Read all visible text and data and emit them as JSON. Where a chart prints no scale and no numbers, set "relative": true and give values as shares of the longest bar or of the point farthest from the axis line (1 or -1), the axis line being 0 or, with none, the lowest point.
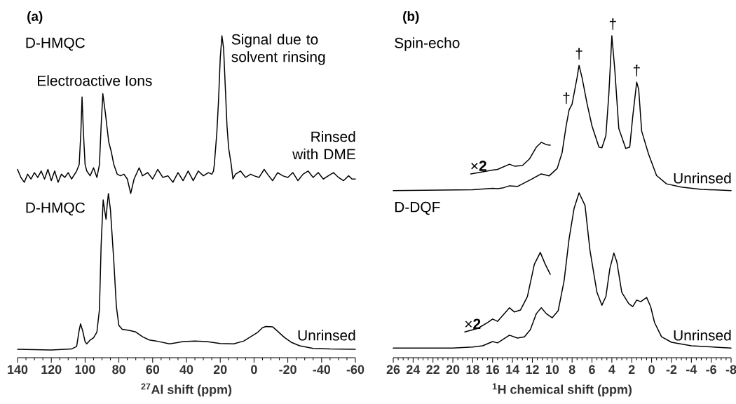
{
  "chart_data": [
    {
      "type": "line",
      "title": "(a)",
      "xlabel": "$^{27}$Al shift (ppm)",
      "relative": true,
      "xlim": [
        140,
        -60
      ],
      "xticks": [
        140,
        120,
        100,
        80,
        60,
        40,
        20,
        0,
        -20,
        -40,
        -60,
        {
          "value": 135,
          "label": null
        },
        {
          "value": 130,
          "label": null
        },
        {
          "value": 125,
          "label": null
        },
        {
          "value": 115,
          "label": null
        },
        {
          "value": 110,
          "label": null
        },
        {
          "value": 105,
          "label": null
        },
        {
          "value": 95,
          "label": null
        },
        {
          "value": 90,
          "label": null
        },
        {
          "value": 85,
          "label": null
        },
        {
          "value": 75,
          "label": null
        },
        {
          "value": 70,
          "label": null
        },
        {
          "value": 65,
          "label": null
        },
        {
          "value": 55,
          "label": null
        },
        {
          "value": 50,
          "label": null
        },
        {
          "value": 45,
          "label": null
        },
        {
          "value": 35,
          "label": null
        },
        {
          "value": 30,
          "label": null
        },
        {
          "value": 25,
          "label": null
        },
        {
          "value": 15,
          "label": null
        },
        {
          "value": 10,
          "label": null
        },
        {
          "value": 5,
          "label": null
        },
        {
          "value": -5,
          "label": null
        },
        {
          "value": -10,
          "label": null
        },
        {
          "value": -15,
          "label": null
        },
        {
          "value": -25,
          "label": null
        },
        {
          "value": -30,
          "label": null
        },
        {
          "value": -35,
          "label": null
        },
        {
          "value": -45,
          "label": null
        },
        {
          "value": -50,
          "label": null
        },
        {
          "value": -55,
          "label": null
        }
      ],
      "marker": "none",
      "line_style": "solid",
      "series": [
        {
          "color": "#000000",
          "x": [
            140,
            138,
            136,
            134,
            132,
            130,
            128,
            126,
            124,
            122,
            120,
            118,
            116,
            114,
            112,
            110,
            108,
            105,
            103.5,
            102.5,
            101.8,
            101,
            100,
            99,
            97,
            95,
            93,
            91.5,
            90.5,
            89.5,
            88,
            86,
            84.5,
            83,
            81,
            79,
            77,
            75,
            73,
            71,
            68,
            66,
            63,
            60,
            57,
            54,
            51,
            48,
            45,
            42,
            39,
            36,
            33,
            30,
            27,
            25,
            24,
            23.5,
            22,
            21,
            20,
            19,
            18,
            17,
            16,
            15,
            13.5,
            12.5,
            11,
            8,
            5,
            2,
            0,
            -3,
            -6,
            -8,
            -11,
            -14,
            -17,
            -20,
            -23,
            -26,
            -29,
            -32,
            -35,
            -38,
            -41,
            -44,
            -47,
            -50,
            -53,
            -56,
            -58,
            -60
          ],
          "values": [
            0.585,
            0.56,
            0.545,
            0.57,
            0.555,
            0.575,
            0.56,
            0.58,
            0.555,
            0.585,
            0.55,
            0.58,
            0.545,
            0.57,
            0.56,
            0.575,
            0.555,
            0.58,
            0.6,
            0.7,
            0.81,
            0.7,
            0.6,
            0.58,
            0.565,
            0.59,
            0.56,
            0.6,
            0.72,
            0.82,
            0.76,
            0.67,
            0.64,
            0.6,
            0.57,
            0.565,
            0.57,
            0.555,
            0.51,
            0.555,
            0.59,
            0.565,
            0.575,
            0.555,
            0.585,
            0.56,
            0.565,
            0.545,
            0.575,
            0.55,
            0.58,
            0.55,
            0.58,
            0.565,
            0.575,
            0.57,
            0.58,
            0.6,
            0.7,
            0.8,
            0.93,
            1.0,
            0.96,
            0.84,
            0.72,
            0.65,
            0.6,
            0.555,
            0.57,
            0.58,
            0.56,
            0.57,
            0.565,
            0.56,
            0.585,
            0.57,
            0.55,
            0.575,
            0.565,
            0.56,
            0.575,
            0.55,
            0.57,
            0.58,
            0.56,
            0.575,
            0.555,
            0.565,
            0.575,
            0.56,
            0.55,
            0.565,
            0.555,
            0.555
          ]
        },
        {
          "color": "#000000",
          "x": [
            140,
            120,
            108,
            105,
            103.5,
            102.7,
            101.5,
            100,
            99,
            97,
            95,
            93,
            91.5,
            90.5,
            89.3,
            88.2,
            87.6,
            87,
            86.2,
            85,
            83,
            81.5,
            80,
            78,
            74,
            70,
            66,
            62,
            58,
            50,
            42,
            35,
            28,
            20,
            12,
            6,
            2,
            -2,
            -5,
            -7,
            -11,
            -14,
            -18,
            -22,
            -27,
            -35,
            -45,
            -60
          ],
          "values": [
            0.026,
            0.024,
            0.027,
            0.035,
            0.085,
            0.105,
            0.085,
            0.05,
            0.043,
            0.055,
            0.062,
            0.08,
            0.15,
            0.35,
            0.49,
            0.45,
            0.43,
            0.47,
            0.51,
            0.46,
            0.3,
            0.16,
            0.1,
            0.088,
            0.085,
            0.08,
            0.065,
            0.055,
            0.052,
            0.043,
            0.05,
            0.052,
            0.05,
            0.044,
            0.043,
            0.052,
            0.065,
            0.078,
            0.093,
            0.097,
            0.096,
            0.082,
            0.063,
            0.048,
            0.037,
            0.029,
            0.027,
            0.026
          ]
        }
      ],
      "annotations": [
        "D-HMQC",
        "Electroactive Ions",
        {
          "text": "Signal due to solvent rinsing",
          "x": 19,
          "y": 1.0
        },
        "Rinsed with DME",
        "D-HMQC",
        "Unrinsed"
      ]
    },
    {
      "type": "line",
      "title": "(b)",
      "xlabel": "$^{1}$H chemical shift (ppm)",
      "relative": true,
      "xlim": [
        26,
        -8
      ],
      "xticks": [
        26,
        24,
        22,
        20,
        18,
        16,
        14,
        12,
        10,
        8,
        6,
        4,
        2,
        0,
        -2,
        -4,
        -6,
        -8,
        {
          "value": 25.5,
          "label": null
        },
        {
          "value": 25,
          "label": null
        },
        {
          "value": 24.5,
          "label": null
        },
        {
          "value": 23.5,
          "label": null
        },
        {
          "value": 23,
          "label": null
        },
        {
          "value": 22.5,
          "label": null
        },
        {
          "value": 21.5,
          "label": null
        },
        {
          "value": 21,
          "label": null
        },
        {
          "value": 20.5,
          "label": null
        },
        {
          "value": 19.5,
          "label": null
        },
        {
          "value": 19,
          "label": null
        },
        {
          "value": 18.5,
          "label": null
        },
        {
          "value": 17.5,
          "label": null
        },
        {
          "value": 17,
          "label": null
        },
        {
          "value": 16.5,
          "label": null
        },
        {
          "value": 15.5,
          "label": null
        },
        {
          "value": 15,
          "label": null
        },
        {
          "value": 14.5,
          "label": null
        },
        {
          "value": 13.5,
          "label": null
        },
        {
          "value": 13,
          "label": null
        },
        {
          "value": 12.5,
          "label": null
        },
        {
          "value": 11.5,
          "label": null
        },
        {
          "value": 11,
          "label": null
        },
        {
          "value": 10.5,
          "label": null
        },
        {
          "value": 9.5,
          "label": null
        },
        {
          "value": 9,
          "label": null
        },
        {
          "value": 8.5,
          "label": null
        },
        {
          "value": 7.5,
          "label": null
        },
        {
          "value": 7,
          "label": null
        },
        {
          "value": 6.5,
          "label": null
        },
        {
          "value": 5.5,
          "label": null
        },
        {
          "value": 5,
          "label": null
        },
        {
          "value": 4.5,
          "label": null
        },
        {
          "value": 3.5,
          "label": null
        },
        {
          "value": 3,
          "label": null
        },
        {
          "value": 2.5,
          "label": null
        },
        {
          "value": 1.5,
          "label": null
        },
        {
          "value": 1,
          "label": null
        },
        {
          "value": 0.5,
          "label": null
        },
        {
          "value": -0.5,
          "label": null
        },
        {
          "value": -1,
          "label": null
        },
        {
          "value": -1.5,
          "label": null
        },
        {
          "value": -2.5,
          "label": null
        },
        {
          "value": -3,
          "label": null
        },
        {
          "value": -3.5,
          "label": null
        },
        {
          "value": -4.5,
          "label": null
        },
        {
          "value": -5,
          "label": null
        },
        {
          "value": -5.5,
          "label": null
        },
        {
          "value": -6.5,
          "label": null
        },
        {
          "value": -7,
          "label": null
        },
        {
          "value": -7.5,
          "label": null
        }
      ],
      "marker": "none",
      "line_style": "solid",
      "series": [
        {
          "color": "#000000",
          "x": [
            26,
            18,
            16,
            15.5,
            15,
            14.3,
            13.5,
            12,
            11.1,
            10.3,
            9.5,
            9,
            8.6,
            8.3,
            8,
            7.5,
            7.3,
            7,
            6.5,
            6,
            5.3,
            5.0,
            4.6,
            4.3,
            4.0,
            3.7,
            3.3,
            2.6,
            2.2,
            1.9,
            1.5,
            1.3,
            1.0,
            0.3,
            -0.5,
            -1.5,
            -3,
            -5,
            -8
          ],
          "values": [
            0.519,
            0.522,
            0.526,
            0.525,
            0.527,
            0.534,
            0.532,
            0.556,
            0.571,
            0.565,
            0.588,
            0.638,
            0.72,
            0.77,
            0.788,
            0.87,
            0.908,
            0.87,
            0.79,
            0.72,
            0.654,
            0.652,
            0.69,
            0.82,
            1.0,
            0.893,
            0.712,
            0.65,
            0.654,
            0.748,
            0.856,
            0.834,
            0.704,
            0.632,
            0.566,
            0.54,
            0.53,
            0.523,
            0.519
          ]
        },
        {
          "color": "#000000",
          "x": [
            18.2,
            16,
            15.5,
            14.3,
            13.8,
            13,
            12.3,
            11.6,
            11.1,
            10.6,
            10.2
          ],
          "values": [
            0.571,
            0.583,
            0.585,
            0.601,
            0.595,
            0.597,
            0.617,
            0.654,
            0.669,
            0.662,
            0.66
          ]
        },
        {
          "color": "#000000",
          "x": [
            26,
            20,
            18,
            17,
            16,
            15.5,
            14.3,
            13.5,
            12.8,
            12.2,
            11.6,
            11.1,
            10.6,
            10.0,
            9.4,
            8.8,
            8.3,
            7.8,
            7.3,
            6.7,
            6.2,
            5.5,
            5.0,
            4.6,
            4.2,
            3.8,
            3.5,
            3.0,
            2.3,
            1.9,
            1.5,
            1.1,
            0.5,
            0.1,
            -0.3,
            -1,
            -2,
            -4,
            -8
          ],
          "values": [
            0.03,
            0.03,
            0.033,
            0.037,
            0.05,
            0.046,
            0.07,
            0.061,
            0.065,
            0.087,
            0.137,
            0.155,
            0.137,
            0.124,
            0.146,
            0.24,
            0.37,
            0.464,
            0.512,
            0.473,
            0.333,
            0.203,
            0.163,
            0.19,
            0.277,
            0.325,
            0.298,
            0.203,
            0.168,
            0.159,
            0.179,
            0.174,
            0.187,
            0.159,
            0.109,
            0.065,
            0.048,
            0.037,
            0.03
          ]
        },
        {
          "color": "#000000",
          "x": [
            18.8,
            17.5,
            16.5,
            16,
            15.5,
            14.3,
            13.8,
            13.2,
            12.5,
            11.8,
            11.2,
            10.7,
            10.2
          ],
          "values": [
            0.08,
            0.091,
            0.109,
            0.12,
            0.113,
            0.155,
            0.142,
            0.148,
            0.19,
            0.29,
            0.327,
            0.29,
            0.259
          ]
        }
      ],
      "annotations": [
        "Spin-echo",
        {
          "text": "†",
          "x": 8.3,
          "y": 0.77
        },
        {
          "text": "†",
          "x": 7.3,
          "y": 0.908
        },
        {
          "text": "†",
          "x": 3.9,
          "y": 1.0
        },
        {
          "text": "†",
          "x": 1.5,
          "y": 0.856
        },
        {
          "text": "×**2**",
          "x": 18.2,
          "y": 0.571
        },
        "Unrinsed",
        "D-DQF",
        {
          "text": "×**2**",
          "x": 18.8,
          "y": 0.08
        },
        "Unrinsed"
      ]
    }
  ]
}
